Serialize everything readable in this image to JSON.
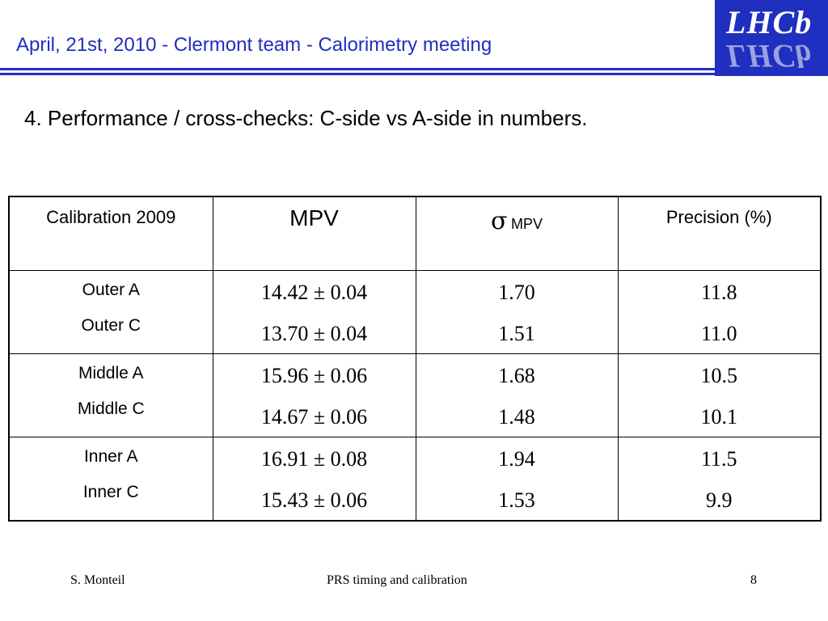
{
  "header": {
    "title": "April, 21st,  2010 - Clermont team - Calorimetry meeting",
    "logo_text": "LHCb"
  },
  "subtitle": "4. Performance /  cross-checks: C-side vs A-side in numbers.",
  "table": {
    "headers": {
      "calibration": "Calibration 2009",
      "mpv": "MPV",
      "sigma_symbol": "σ",
      "sigma_sub": "MPV",
      "precision": "Precision (%)"
    },
    "rows": [
      {
        "labels": [
          "Outer A",
          "Outer C"
        ],
        "mpv": [
          "14.42 ± 0.04",
          "13.70 ± 0.04"
        ],
        "sigma": [
          "1.70",
          "1.51"
        ],
        "precision": [
          "11.8",
          "11.0"
        ]
      },
      {
        "labels": [
          "Middle A",
          "Middle C"
        ],
        "mpv": [
          "15.96 ± 0.06",
          "14.67 ± 0.06"
        ],
        "sigma": [
          "1.68",
          "1.48"
        ],
        "precision": [
          "10.5",
          "10.1"
        ]
      },
      {
        "labels": [
          "Inner A",
          "Inner C"
        ],
        "mpv": [
          "16.91 ± 0.08",
          "15.43 ± 0.06"
        ],
        "sigma": [
          "1.94",
          "1.53"
        ],
        "precision": [
          "11.5",
          "9.9"
        ]
      }
    ]
  },
  "footer": {
    "author": "S. Monteil",
    "center": "PRS timing and calibration",
    "page": "8"
  },
  "colors": {
    "accent": "#1f2fbf"
  }
}
